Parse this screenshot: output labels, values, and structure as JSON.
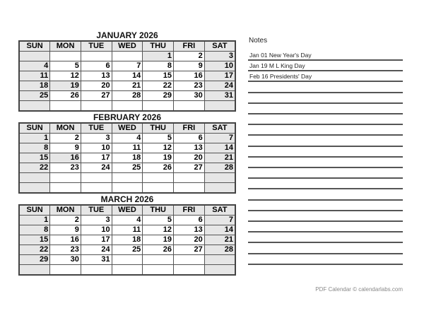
{
  "weekdays": [
    "SUN",
    "MON",
    "TUE",
    "WED",
    "THU",
    "FRI",
    "SAT"
  ],
  "months": [
    {
      "title": "JANUARY  2026",
      "start_weekday": 4,
      "days": 31,
      "holidays": [
        1,
        19
      ]
    },
    {
      "title": "FEBRUARY  2026",
      "start_weekday": 0,
      "days": 28,
      "holidays": [
        16
      ]
    },
    {
      "title": "MARCH  2026",
      "start_weekday": 0,
      "days": 31,
      "holidays": []
    }
  ],
  "notes": {
    "title": "Notes",
    "entries": [
      "Jan 01  New Year's Day",
      "Jan 19  M L King Day",
      "Feb 16  Presidents' Day"
    ],
    "line_count": 20
  },
  "footer": "PDF Calendar © calendarlabs.com",
  "colors": {
    "shade": "#e6e6e6",
    "border": "#555555"
  }
}
